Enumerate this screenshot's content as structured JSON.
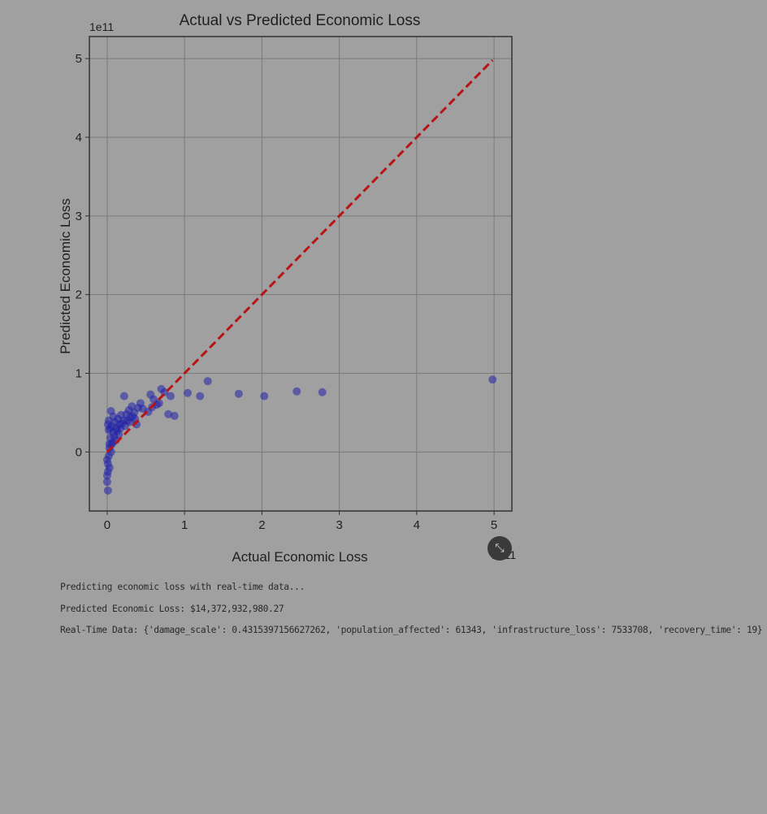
{
  "chart_data": {
    "type": "scatter",
    "title": "Actual vs Predicted Economic Loss",
    "xlabel": "Actual Economic Loss",
    "ylabel": "Predicted Economic Loss",
    "x_scale_label": "1e11",
    "y_scale_label": "1e11",
    "xlim": [
      -0.23,
      5.23
    ],
    "ylim": [
      -0.75,
      5.28
    ],
    "x_ticks": [
      0,
      1,
      2,
      3,
      4,
      5
    ],
    "y_ticks": [
      0,
      1,
      2,
      3,
      4,
      5
    ],
    "grid": true,
    "point_color": "#2222aa",
    "reference_line": {
      "style": "dashed",
      "color": "#b81414",
      "x": [
        0,
        4.98
      ],
      "y": [
        0,
        4.98
      ]
    },
    "points": [
      {
        "x": 4.98,
        "y": 0.92
      },
      {
        "x": 2.78,
        "y": 0.76
      },
      {
        "x": 2.45,
        "y": 0.77
      },
      {
        "x": 2.03,
        "y": 0.71
      },
      {
        "x": 1.7,
        "y": 0.74
      },
      {
        "x": 1.3,
        "y": 0.9
      },
      {
        "x": 1.2,
        "y": 0.71
      },
      {
        "x": 1.04,
        "y": 0.75
      },
      {
        "x": 0.87,
        "y": 0.46
      },
      {
        "x": 0.82,
        "y": 0.71
      },
      {
        "x": 0.79,
        "y": 0.48
      },
      {
        "x": 0.74,
        "y": 0.76
      },
      {
        "x": 0.7,
        "y": 0.8
      },
      {
        "x": 0.67,
        "y": 0.62
      },
      {
        "x": 0.6,
        "y": 0.67
      },
      {
        "x": 0.56,
        "y": 0.73
      },
      {
        "x": 0.53,
        "y": 0.51
      },
      {
        "x": 0.43,
        "y": 0.62
      },
      {
        "x": 0.4,
        "y": 0.56
      },
      {
        "x": 0.38,
        "y": 0.35
      },
      {
        "x": 0.35,
        "y": 0.5
      },
      {
        "x": 0.32,
        "y": 0.58
      },
      {
        "x": 0.3,
        "y": 0.44
      },
      {
        "x": 0.28,
        "y": 0.53
      },
      {
        "x": 0.25,
        "y": 0.48
      },
      {
        "x": 0.22,
        "y": 0.71
      },
      {
        "x": 0.21,
        "y": 0.4
      },
      {
        "x": 0.18,
        "y": 0.47
      },
      {
        "x": 0.16,
        "y": 0.35
      },
      {
        "x": 0.14,
        "y": 0.42
      },
      {
        "x": 0.12,
        "y": 0.3
      },
      {
        "x": 0.1,
        "y": 0.38
      },
      {
        "x": 0.08,
        "y": 0.25
      },
      {
        "x": 0.06,
        "y": 0.33
      },
      {
        "x": 0.05,
        "y": 0.52
      },
      {
        "x": 0.04,
        "y": 0.18
      },
      {
        "x": 0.03,
        "y": 0.1
      },
      {
        "x": 0.02,
        "y": 0.28
      },
      {
        "x": 0.02,
        "y": -0.05
      },
      {
        "x": 0.01,
        "y": -0.15
      },
      {
        "x": 0.01,
        "y": -0.25
      },
      {
        "x": 0.0,
        "y": -0.3
      },
      {
        "x": 0.0,
        "y": -0.38
      },
      {
        "x": 0.01,
        "y": -0.49
      },
      {
        "x": 0.03,
        "y": 0.05
      },
      {
        "x": 0.07,
        "y": 0.12
      },
      {
        "x": 0.09,
        "y": 0.2
      },
      {
        "x": 0.11,
        "y": 0.15
      },
      {
        "x": 0.13,
        "y": 0.27
      },
      {
        "x": 0.15,
        "y": 0.22
      },
      {
        "x": 0.17,
        "y": 0.3
      },
      {
        "x": 0.19,
        "y": 0.36
      },
      {
        "x": 0.23,
        "y": 0.33
      },
      {
        "x": 0.26,
        "y": 0.4
      },
      {
        "x": 0.29,
        "y": 0.38
      },
      {
        "x": 0.33,
        "y": 0.45
      },
      {
        "x": 0.36,
        "y": 0.42
      },
      {
        "x": 0.46,
        "y": 0.55
      },
      {
        "x": 0.58,
        "y": 0.57
      },
      {
        "x": 0.64,
        "y": 0.6
      },
      {
        "x": 0.02,
        "y": 0.4
      },
      {
        "x": 0.04,
        "y": 0.3
      },
      {
        "x": 0.06,
        "y": 0.1
      },
      {
        "x": 0.0,
        "y": -0.1
      },
      {
        "x": 0.05,
        "y": 0.0
      },
      {
        "x": 0.08,
        "y": 0.45
      },
      {
        "x": 0.01,
        "y": 0.35
      },
      {
        "x": 0.03,
        "y": -0.2
      }
    ]
  },
  "console": {
    "lines": [
      "Predicting economic loss with real-time data...",
      "Predicted Economic Loss: $14,372,932,980.27",
      "Real-Time Data: {'damage_scale': 0.4315397156627262, 'population_affected': 61343, 'infrastructure_loss': 7533708, 'recovery_time': 19}"
    ]
  },
  "hover_button": {
    "label": "⤡",
    "icon": "expand-icon"
  }
}
